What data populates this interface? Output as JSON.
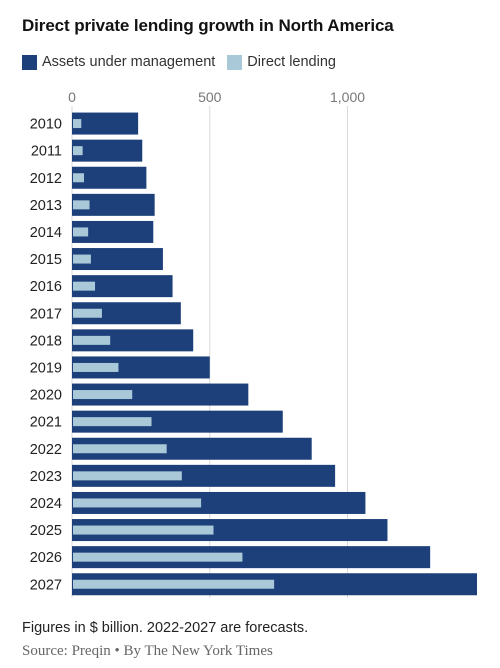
{
  "title": "Direct private lending growth in North America",
  "legend": {
    "aum_label": "Assets under management",
    "dl_label": "Direct lending"
  },
  "colors": {
    "aum": "#1d3f7a",
    "direct_lending": "#a9c9d8",
    "axis_text": "#777777",
    "label_text": "#222222"
  },
  "chart_data": {
    "type": "bar",
    "orientation": "horizontal",
    "categories": [
      "2010",
      "2011",
      "2012",
      "2013",
      "2014",
      "2015",
      "2016",
      "2017",
      "2018",
      "2019",
      "2020",
      "2021",
      "2022",
      "2023",
      "2024",
      "2025",
      "2026",
      "2027"
    ],
    "series": [
      {
        "name": "Assets under management",
        "values": [
          240,
          255,
          270,
          300,
          295,
          330,
          365,
          395,
          440,
          500,
          640,
          765,
          870,
          955,
          1065,
          1145,
          1300,
          1470
        ]
      },
      {
        "name": "Direct lending",
        "values": [
          30,
          35,
          40,
          60,
          55,
          65,
          80,
          105,
          135,
          165,
          215,
          285,
          340,
          395,
          465,
          510,
          615,
          730
        ]
      }
    ],
    "xlim": [
      0,
      1470
    ],
    "xticks": [
      0,
      500,
      1000
    ],
    "xtick_labels": [
      "0",
      "500",
      "1,000"
    ],
    "grid": true,
    "legend_position": "top-left"
  },
  "footnote": "Figures in $ billion. 2022-2027 are forecasts.",
  "source": "Source: Preqin • By The New York Times"
}
